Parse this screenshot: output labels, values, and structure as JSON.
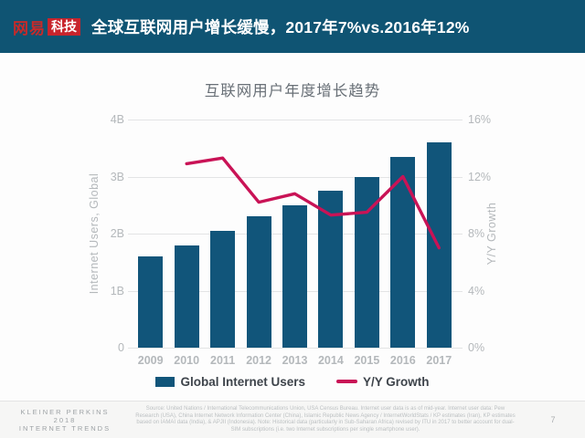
{
  "header": {
    "logo_brand": "网易",
    "logo_badge": "科技",
    "title": "全球互联网用户增长缓慢，2017年7%vs.2016年12%"
  },
  "chart_data": {
    "type": "bar",
    "title": "互联网用户年度增长趋势",
    "categories": [
      "2009",
      "2010",
      "2011",
      "2012",
      "2013",
      "2014",
      "2015",
      "2016",
      "2017"
    ],
    "series": [
      {
        "name": "Global Internet Users",
        "type": "bar",
        "axis": "left",
        "unit": "B",
        "color": "#11557A",
        "values": [
          1.6,
          1.8,
          2.05,
          2.3,
          2.5,
          2.75,
          3.0,
          3.35,
          3.6
        ]
      },
      {
        "name": "Y/Y Growth",
        "type": "line",
        "axis": "right",
        "unit": "%",
        "color": "#C91356",
        "values": [
          null,
          12.9,
          13.3,
          10.2,
          10.8,
          9.3,
          9.5,
          12.0,
          7.0
        ]
      }
    ],
    "left_axis": {
      "label": "Internet Users, Global",
      "ticks": [
        "0",
        "1B",
        "2B",
        "3B",
        "4B"
      ],
      "min": 0,
      "max": 4
    },
    "right_axis": {
      "label": "Y/Y Growth",
      "ticks": [
        "0%",
        "4%",
        "8%",
        "12%",
        "16%"
      ],
      "min": 0,
      "max": 16
    },
    "grid": true,
    "legend_position": "bottom"
  },
  "footer": {
    "brand_line1": "KLEINER PERKINS",
    "brand_line2": "2018",
    "brand_line3": "INTERNET TRENDS",
    "source": "Source: United Nations / International Telecommunications Union, USA Census Bureau. Internet user data is as of mid-year. Internet user data: Pew Research (USA), China Internet Network Information Center (China), Islamic Republic News Agency / InternetWorldStats / KP estimates (Iran), KP estimates based on IAMAI data (India), & APJII (Indonesia). Note: Historical data (particularly in Sub-Saharan Africa) revised by ITU in 2017 to better account for dual-SIM subscriptions (i.e. two Internet subscriptions per single smartphone user).",
    "page_number": "7"
  }
}
